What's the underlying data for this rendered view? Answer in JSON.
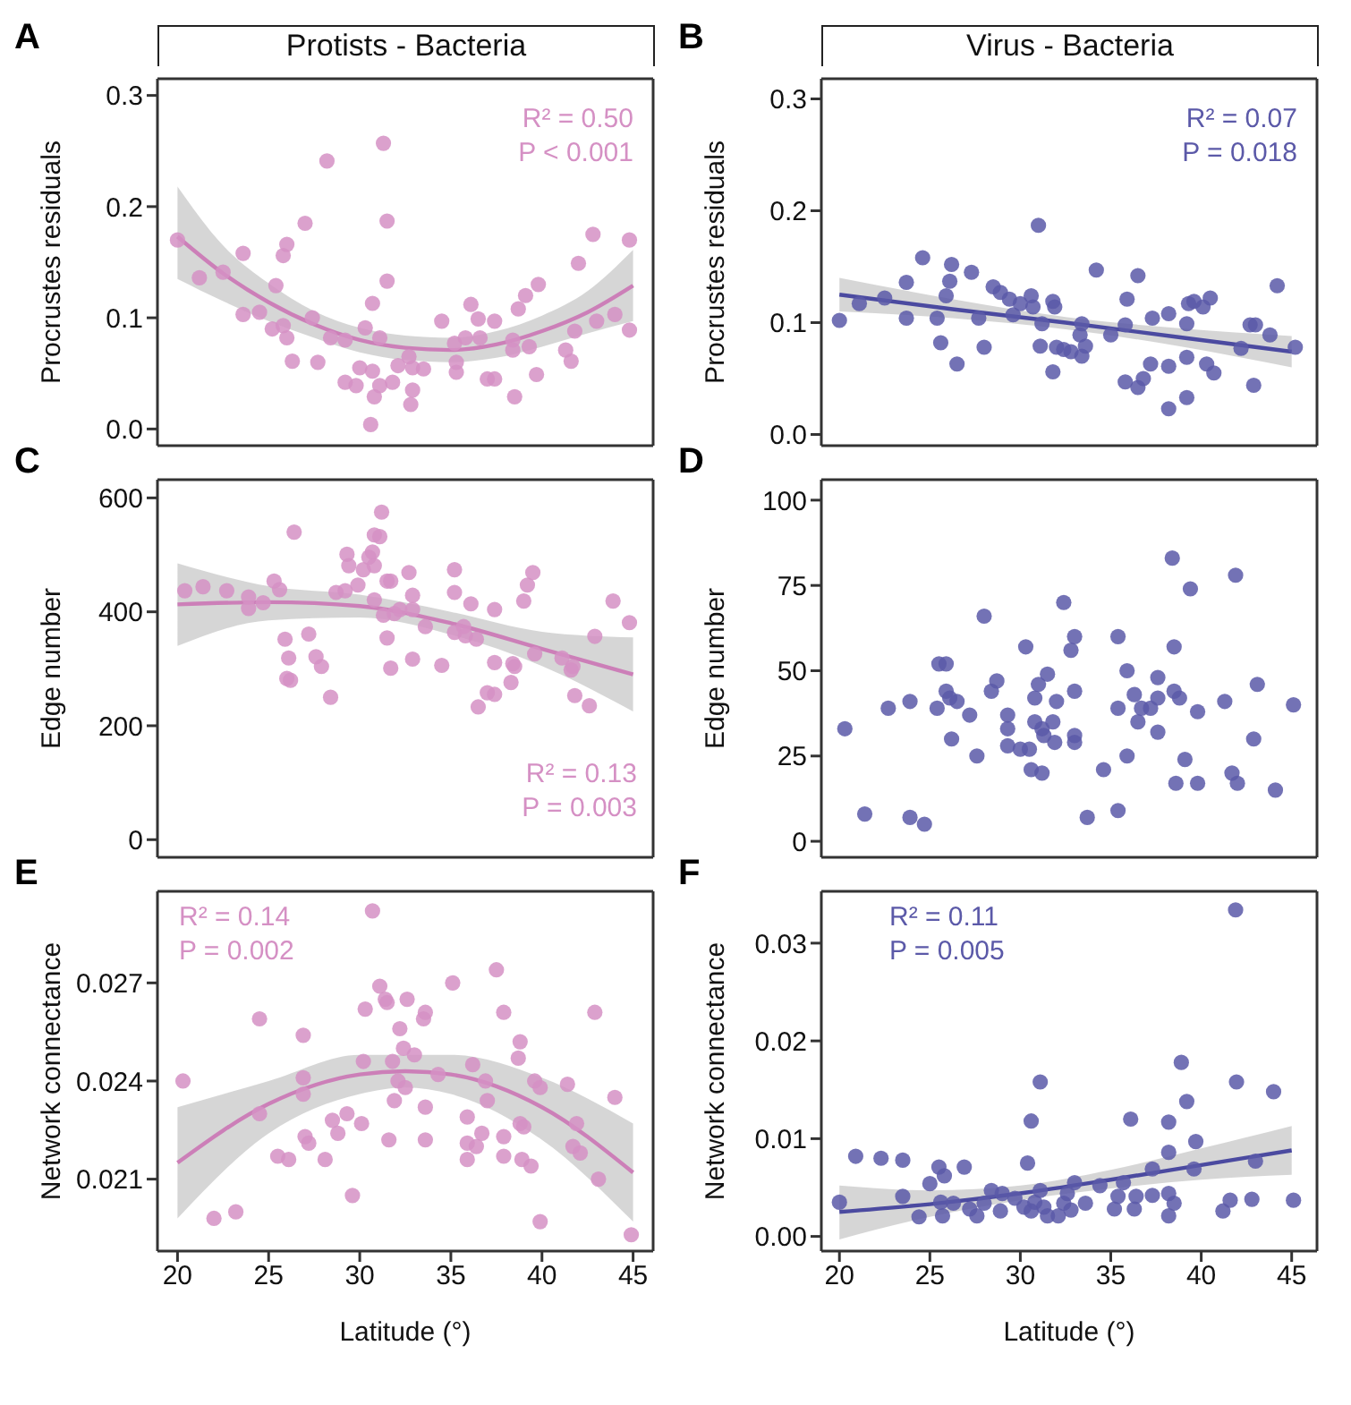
{
  "chart_data": [
    {
      "type": "scatter",
      "title": "Protists - Bacteria",
      "ylabel": "Procrustes residuals",
      "annotations": [
        "A",
        "R² = 0.50",
        "P < 0.001"
      ],
      "xlim": [
        18.9,
        46.1
      ],
      "xticks": [
        20,
        25,
        30,
        35,
        40,
        45
      ],
      "ylim": [
        -0.015,
        0.315
      ],
      "yticks": [
        {
          "value": 0,
          "label": "0.0"
        },
        {
          "value": 0.1,
          "label": "0.1"
        },
        {
          "value": 0.2,
          "label": "0.2"
        },
        {
          "value": 0.3,
          "label": "0.3"
        }
      ],
      "tick_labels": "y",
      "series": [
        {
          "marker": "circle",
          "color": "#d590c4",
          "x": [
            20,
            21.2,
            22.5,
            23.6,
            23.6,
            24.5,
            25.4,
            25.2,
            25.8,
            26,
            25.8,
            26,
            26.3,
            27,
            27.4,
            27.7,
            28.2,
            28.4,
            29.2,
            29.2,
            29.8,
            30,
            30.3,
            30.7,
            30.6,
            30.7,
            30.8,
            31.1,
            31.1,
            31.3,
            31.5,
            31.5,
            31.8,
            32.1,
            32.7,
            32.9,
            32.9,
            32.8,
            33.5,
            34.5,
            35.2,
            35.3,
            35.3,
            36.1,
            35.8,
            36.5,
            36.6,
            37,
            37.4,
            37.4,
            38.4,
            38.4,
            38.5,
            38.7,
            39.1,
            39.3,
            39.7,
            39.8,
            41.3,
            41.6,
            41.8,
            42,
            42.8,
            43,
            44,
            44.8,
            44.8
          ],
          "values": [
            0.17,
            0.136,
            0.141,
            0.158,
            0.103,
            0.105,
            0.129,
            0.09,
            0.156,
            0.166,
            0.093,
            0.082,
            0.061,
            0.185,
            0.1,
            0.06,
            0.241,
            0.082,
            0.08,
            0.042,
            0.039,
            0.055,
            0.091,
            0.113,
            0.004,
            0.052,
            0.029,
            0.082,
            0.039,
            0.257,
            0.187,
            0.133,
            0.042,
            0.057,
            0.065,
            0.055,
            0.035,
            0.022,
            0.054,
            0.097,
            0.077,
            0.06,
            0.051,
            0.112,
            0.082,
            0.099,
            0.082,
            0.045,
            0.045,
            0.097,
            0.08,
            0.071,
            0.029,
            0.108,
            0.12,
            0.074,
            0.049,
            0.13,
            0.071,
            0.061,
            0.088,
            0.149,
            0.175,
            0.097,
            0.103,
            0.17,
            0.089
          ]
        },
        {
          "type": "line",
          "marker": "none",
          "color": "#cc7fb8",
          "x": [
            20,
            22.5,
            25,
            27.5,
            30,
            32.5,
            35,
            37.5,
            40,
            42.5,
            45
          ],
          "values": [
            0.173,
            0.14,
            0.114,
            0.094,
            0.08,
            0.073,
            0.071,
            0.076,
            0.088,
            0.105,
            0.129
          ],
          "lower": [
            0.135,
            0.115,
            0.097,
            0.082,
            0.069,
            0.062,
            0.06,
            0.064,
            0.074,
            0.086,
            0.097
          ],
          "upper": [
            0.218,
            0.165,
            0.131,
            0.106,
            0.091,
            0.084,
            0.082,
            0.088,
            0.102,
            0.124,
            0.161
          ]
        }
      ]
    },
    {
      "type": "scatter",
      "title": "Virus - Bacteria",
      "ylabel": "Procrustes residuals",
      "annotations": [
        "B",
        "R² = 0.07",
        "P = 0.018"
      ],
      "xlim": [
        19,
        46.4
      ],
      "xticks": [
        20,
        25,
        30,
        35,
        40,
        45
      ],
      "ylim": [
        -0.01,
        0.318
      ],
      "yticks": [
        {
          "value": 0,
          "label": "0.0"
        },
        {
          "value": 0.1,
          "label": "0.1"
        },
        {
          "value": 0.2,
          "label": "0.2"
        },
        {
          "value": 0.3,
          "label": "0.3"
        }
      ],
      "tick_labels": "y",
      "series": [
        {
          "marker": "circle",
          "color": "#5b59a8",
          "x": [
            20,
            21.1,
            22.5,
            23.7,
            23.7,
            24.6,
            25.4,
            25.6,
            25.9,
            26.1,
            26.2,
            26.5,
            27.3,
            27.7,
            28,
            28.5,
            28.9,
            29.4,
            29.6,
            30,
            30.6,
            30.7,
            31,
            31.1,
            31.2,
            31.8,
            31.9,
            31.8,
            32,
            32.4,
            32.8,
            33.3,
            33.4,
            33.4,
            33.6,
            34.2,
            35,
            35.9,
            35.8,
            35.8,
            36.5,
            36.5,
            36.8,
            37.2,
            37.3,
            38.2,
            38.2,
            38.2,
            39.2,
            39.2,
            39.2,
            39.3,
            39.6,
            40.1,
            40.3,
            40.5,
            40.7,
            42.2,
            42.7,
            43,
            42.9,
            43.8,
            44.2,
            45.2
          ],
          "values": [
            0.102,
            0.117,
            0.122,
            0.136,
            0.104,
            0.158,
            0.104,
            0.082,
            0.124,
            0.137,
            0.152,
            0.063,
            0.145,
            0.104,
            0.078,
            0.132,
            0.127,
            0.121,
            0.107,
            0.117,
            0.124,
            0.114,
            0.187,
            0.079,
            0.099,
            0.119,
            0.114,
            0.056,
            0.078,
            0.076,
            0.074,
            0.089,
            0.099,
            0.07,
            0.079,
            0.147,
            0.089,
            0.121,
            0.098,
            0.047,
            0.142,
            0.042,
            0.05,
            0.063,
            0.104,
            0.108,
            0.061,
            0.023,
            0.099,
            0.069,
            0.033,
            0.117,
            0.119,
            0.114,
            0.063,
            0.122,
            0.055,
            0.077,
            0.098,
            0.098,
            0.044,
            0.089,
            0.133,
            0.078
          ]
        },
        {
          "type": "line",
          "marker": "none",
          "color": "#4b4aa0",
          "x": [
            20,
            26.25,
            32.5,
            38.75,
            45
          ],
          "values": [
            0.125,
            0.112,
            0.1,
            0.087,
            0.074
          ],
          "lower": [
            0.11,
            0.104,
            0.094,
            0.079,
            0.06
          ],
          "upper": [
            0.14,
            0.121,
            0.105,
            0.095,
            0.088
          ]
        }
      ]
    },
    {
      "type": "scatter",
      "ylabel": "Edge number",
      "annotations": [
        "C",
        "R² = 0.13",
        "P = 0.003"
      ],
      "xlim": [
        18.9,
        46.1
      ],
      "xticks": [
        20,
        25,
        30,
        35,
        40,
        45
      ],
      "ylim": [
        -31,
        632
      ],
      "yticks": [
        0,
        200,
        400,
        600
      ],
      "tick_labels": "y",
      "series": [
        {
          "marker": "circle",
          "color": "#d590c4",
          "x": [
            20.4,
            21.4,
            22.7,
            23.9,
            23.9,
            24.7,
            25.3,
            25.6,
            25.9,
            26.1,
            26,
            26.2,
            26.4,
            27.2,
            27.6,
            27.9,
            28.4,
            28.7,
            29.2,
            29.3,
            29.4,
            29.9,
            30.2,
            30.5,
            30.7,
            30.8,
            30.8,
            31.1,
            31.2,
            30.8,
            31.5,
            31.7,
            31.5,
            31.7,
            31.3,
            31.9,
            32.2,
            32.7,
            32.9,
            32.9,
            33.6,
            32.9,
            34.5,
            35.2,
            35.2,
            35.2,
            35.7,
            36.1,
            35.8,
            36.4,
            36.5,
            37,
            37.4,
            37.4,
            37.4,
            38.3,
            38.4,
            38.5,
            39,
            39.2,
            39.5,
            39.6,
            41.1,
            41.6,
            41.7,
            41.8,
            42.6,
            42.9,
            43.9,
            44.8
          ],
          "values": [
            437,
            444,
            437,
            426,
            406,
            416,
            454,
            439,
            352,
            319,
            283,
            280,
            540,
            361,
            321,
            304,
            250,
            434,
            437,
            501,
            481,
            447,
            474,
            496,
            505,
            481,
            535,
            532,
            575,
            421,
            454,
            454,
            354,
            301,
            394,
            397,
            404,
            469,
            429,
            404,
            374,
            317,
            306,
            474,
            434,
            364,
            374,
            414,
            358,
            352,
            233,
            258,
            255,
            404,
            311,
            276,
            309,
            304,
            419,
            447,
            469,
            326,
            319,
            298,
            304,
            253,
            235,
            357,
            419,
            381
          ]
        },
        {
          "type": "line",
          "marker": "none",
          "color": "#cc7fb8",
          "x": [
            20,
            25,
            30,
            35,
            40,
            45
          ],
          "values": [
            413,
            417,
            410,
            380,
            335,
            290
          ],
          "lower": [
            340,
            385,
            390,
            360,
            305,
            225
          ],
          "upper": [
            485,
            445,
            430,
            400,
            365,
            355
          ]
        }
      ]
    },
    {
      "type": "scatter",
      "ylabel": "Edge number",
      "annotations": [
        "D"
      ],
      "xlim": [
        19,
        46.4
      ],
      "xticks": [
        20,
        25,
        30,
        35,
        40,
        45
      ],
      "ylim": [
        -4.7,
        106
      ],
      "yticks": [
        0,
        25,
        50,
        75,
        100
      ],
      "tick_labels": "y",
      "series": [
        {
          "marker": "circle",
          "color": "#5b59a8",
          "x": [
            20.3,
            21.4,
            22.7,
            23.9,
            23.9,
            24.7,
            25.4,
            25.5,
            25.9,
            25.9,
            26.1,
            26.5,
            26.2,
            27.2,
            27.6,
            28,
            28.4,
            28.7,
            29.3,
            29.3,
            29.3,
            30,
            30.5,
            30.3,
            30.6,
            31.2,
            30.8,
            31,
            30.8,
            31.2,
            31.5,
            31.3,
            31.8,
            31.9,
            32,
            32.4,
            32.8,
            33,
            33,
            33,
            33,
            33.7,
            34.6,
            35.4,
            35.4,
            35.4,
            35.9,
            35.9,
            36.3,
            36.5,
            36.7,
            37.2,
            37.6,
            37.6,
            37.6,
            38.4,
            38.5,
            38.5,
            38.8,
            39.1,
            38.6,
            39.4,
            39.8,
            39.8,
            41.3,
            41.7,
            41.9,
            42,
            42.9,
            43.1,
            44.1,
            45.1
          ],
          "values": [
            33,
            8,
            39,
            41,
            7,
            5,
            39,
            52,
            52,
            44,
            42,
            41,
            30,
            37,
            25,
            66,
            44,
            47,
            37,
            33,
            28,
            27,
            27,
            57,
            21,
            20,
            42,
            46,
            35,
            33,
            49,
            31,
            35,
            29,
            41,
            70,
            56,
            60,
            44,
            31,
            29,
            7,
            21,
            60,
            39,
            9,
            50,
            25,
            43,
            35,
            39,
            39,
            48,
            42,
            32,
            83,
            57,
            44,
            42,
            24,
            17,
            74,
            17,
            38,
            41,
            20,
            78,
            17,
            30,
            46,
            15,
            40
          ]
        }
      ]
    },
    {
      "type": "scatter",
      "xlabel": "Latitude (°)",
      "ylabel": "Network connectance",
      "annotations": [
        "E",
        "R² = 0.14",
        "P = 0.002"
      ],
      "xlim": [
        18.9,
        46.1
      ],
      "xticks": [
        20,
        25,
        30,
        35,
        40,
        45
      ],
      "ylim": [
        0.0188,
        0.0298
      ],
      "yticks": [
        0.021,
        0.024,
        0.027
      ],
      "series": [
        {
          "marker": "circle",
          "color": "#d590c4",
          "x": [
            20.3,
            22,
            23.2,
            24.5,
            24.5,
            25.5,
            26.1,
            26.9,
            26.9,
            26.9,
            27,
            27.2,
            28.1,
            28.5,
            28.8,
            29.3,
            29.6,
            30.1,
            30.2,
            30.3,
            30.7,
            31.1,
            31.4,
            31.5,
            31.6,
            31.8,
            31.9,
            32.1,
            32.2,
            32.4,
            32.5,
            32.6,
            33,
            33.5,
            33.6,
            33.6,
            33.6,
            34.3,
            35.1,
            35.9,
            35.9,
            35.9,
            36.2,
            36.4,
            36.7,
            36.9,
            37,
            37.5,
            37.9,
            37.9,
            37.9,
            38.8,
            38.7,
            38.8,
            38.9,
            39,
            39.4,
            39.6,
            39.9,
            39.9,
            41.4,
            41.7,
            41.9,
            42.1,
            42.9,
            43.1,
            44,
            44.9
          ],
          "values": [
            0.024,
            0.0198,
            0.02,
            0.0259,
            0.023,
            0.0217,
            0.0216,
            0.0254,
            0.0241,
            0.0236,
            0.0223,
            0.0221,
            0.0216,
            0.0228,
            0.0224,
            0.023,
            0.0205,
            0.0227,
            0.0246,
            0.0262,
            0.0292,
            0.0269,
            0.0265,
            0.0264,
            0.0222,
            0.0246,
            0.0234,
            0.024,
            0.0256,
            0.025,
            0.0238,
            0.0265,
            0.0248,
            0.0259,
            0.0261,
            0.0232,
            0.0222,
            0.0242,
            0.027,
            0.0229,
            0.0221,
            0.0216,
            0.0245,
            0.022,
            0.0224,
            0.024,
            0.0234,
            0.0274,
            0.0261,
            0.0223,
            0.0217,
            0.0252,
            0.0247,
            0.0227,
            0.0216,
            0.0226,
            0.0214,
            0.024,
            0.0238,
            0.0197,
            0.0239,
            0.022,
            0.0227,
            0.0218,
            0.0261,
            0.021,
            0.0235,
            0.0193
          ]
        },
        {
          "type": "line",
          "marker": "none",
          "color": "#cc7fb8",
          "x": [
            20,
            25,
            30,
            32.5,
            35,
            40,
            45
          ],
          "values": [
            0.0215,
            0.0233,
            0.0242,
            0.0243,
            0.0242,
            0.0232,
            0.0212
          ],
          "lower": [
            0.0198,
            0.0224,
            0.0236,
            0.0238,
            0.0236,
            0.0222,
            0.0197
          ],
          "upper": [
            0.0232,
            0.024,
            0.0248,
            0.0248,
            0.0248,
            0.0241,
            0.0227
          ]
        }
      ]
    },
    {
      "type": "scatter",
      "xlabel": "Latitude (°)",
      "ylabel": "Network connectance",
      "annotations": [
        "F",
        "R² = 0.11",
        "P = 0.005"
      ],
      "xlim": [
        19,
        46.4
      ],
      "xticks": [
        20,
        25,
        30,
        35,
        40,
        45
      ],
      "ylim": [
        -0.0015,
        0.0353
      ],
      "yticks": [
        {
          "value": 0,
          "label": "0.00"
        },
        {
          "value": 0.01,
          "label": "0.01"
        },
        {
          "value": 0.02,
          "label": "0.02"
        },
        {
          "value": 0.03,
          "label": "0.03"
        }
      ],
      "series": [
        {
          "marker": "circle",
          "color": "#5b59a8",
          "x": [
            20,
            20.9,
            22.3,
            23.5,
            23.5,
            24.4,
            25,
            25.5,
            25.8,
            25.7,
            25.6,
            26.3,
            26.9,
            27.2,
            27.6,
            28,
            28.4,
            28.9,
            29,
            29.7,
            30.2,
            30.4,
            30.6,
            30.6,
            30.8,
            31.1,
            31.1,
            31.3,
            31.5,
            32.1,
            32.4,
            32.6,
            32.8,
            33,
            33.6,
            34.4,
            35.2,
            35.4,
            35.7,
            36.1,
            36.3,
            36.4,
            37.3,
            37.3,
            38.2,
            38.2,
            38.2,
            38.2,
            38.5,
            38.9,
            39.2,
            39.6,
            39.7,
            41.2,
            41.6,
            41.9,
            41.95,
            42.8,
            43,
            44,
            45.1
          ],
          "values": [
            0.0035,
            0.0082,
            0.008,
            0.0078,
            0.0041,
            0.002,
            0.0054,
            0.0071,
            0.0062,
            0.0021,
            0.0035,
            0.0034,
            0.0071,
            0.0028,
            0.0021,
            0.0034,
            0.0047,
            0.0026,
            0.0044,
            0.0039,
            0.003,
            0.0075,
            0.0118,
            0.0026,
            0.0035,
            0.0158,
            0.0047,
            0.003,
            0.0021,
            0.0021,
            0.0034,
            0.0044,
            0.0027,
            0.0055,
            0.0034,
            0.0052,
            0.0028,
            0.0041,
            0.0055,
            0.012,
            0.0028,
            0.0041,
            0.0042,
            0.0069,
            0.0117,
            0.0086,
            0.0044,
            0.0021,
            0.0034,
            0.0178,
            0.0138,
            0.0069,
            0.0097,
            0.0026,
            0.0037,
            0.0334,
            0.0158,
            0.0038,
            0.0077,
            0.0148,
            0.0037
          ]
        },
        {
          "type": "line",
          "marker": "none",
          "color": "#4b4aa0",
          "x": [
            20,
            25,
            30,
            35,
            40,
            45
          ],
          "values": [
            0.0025,
            0.0033,
            0.0044,
            0.0058,
            0.0073,
            0.0088
          ],
          "lower": [
            -0.0003,
            0.002,
            0.0037,
            0.0049,
            0.0058,
            0.0063
          ],
          "upper": [
            0.0052,
            0.0047,
            0.0052,
            0.0068,
            0.009,
            0.0113
          ]
        }
      ]
    }
  ]
}
